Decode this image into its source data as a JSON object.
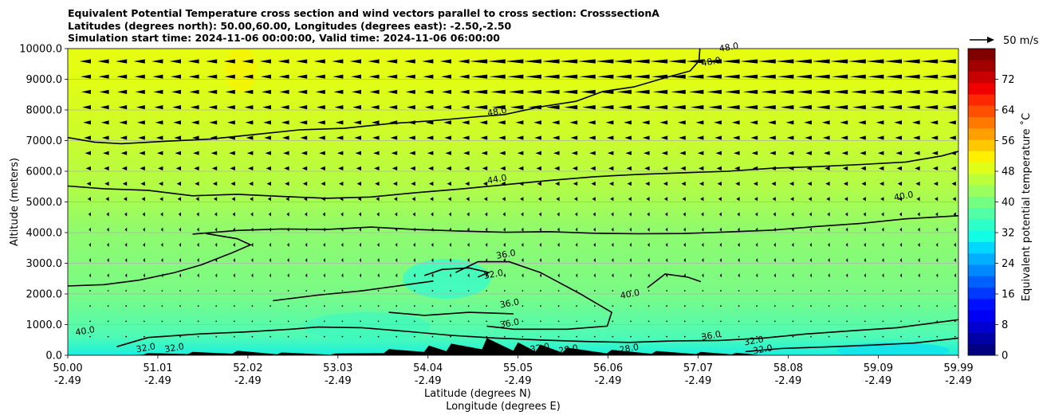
{
  "chart_data": {
    "type": "contour",
    "title_lines": [
      "Equivalent Potential Temperature cross section and wind vectors parallel to cross section: CrosssectionA",
      "Latitudes (degrees north): 50.00,60.00, Longitudes (degrees east): -2.50,-2.50",
      "Simulation start time: 2024-11-06 00:00:00, Valid time: 2024-11-06 06:00:00"
    ],
    "xlabel_lines": [
      "Latitude (degrees N)",
      "Longitude (degrees E)"
    ],
    "ylabel": "Altitude (meters)",
    "xlim": [
      50.0,
      59.99
    ],
    "ylim": [
      0,
      10000
    ],
    "x_ticks": [
      {
        "value": 50.0,
        "lat": "50.00",
        "lon": "-2.49"
      },
      {
        "value": 51.01,
        "lat": "51.01",
        "lon": "-2.49"
      },
      {
        "value": 52.02,
        "lat": "52.02",
        "lon": "-2.49"
      },
      {
        "value": 53.03,
        "lat": "53.03",
        "lon": "-2.49"
      },
      {
        "value": 54.04,
        "lat": "54.04",
        "lon": "-2.49"
      },
      {
        "value": 55.05,
        "lat": "55.05",
        "lon": "-2.49"
      },
      {
        "value": 56.06,
        "lat": "56.06",
        "lon": "-2.49"
      },
      {
        "value": 57.07,
        "lat": "57.07",
        "lon": "-2.49"
      },
      {
        "value": 58.08,
        "lat": "58.08",
        "lon": "-2.49"
      },
      {
        "value": 59.09,
        "lat": "59.09",
        "lon": "-2.49"
      },
      {
        "value": 59.99,
        "lat": "59.99",
        "lon": "-2.49"
      }
    ],
    "y_ticks": [
      {
        "value": 0,
        "label": "0.0"
      },
      {
        "value": 1000,
        "label": "1000.0"
      },
      {
        "value": 2000,
        "label": "2000.0"
      },
      {
        "value": 3000,
        "label": "3000.0"
      },
      {
        "value": 4000,
        "label": "4000.0"
      },
      {
        "value": 5000,
        "label": "5000.0"
      },
      {
        "value": 6000,
        "label": "6000.0"
      },
      {
        "value": 7000,
        "label": "7000.0"
      },
      {
        "value": 8000,
        "label": "8000.0"
      },
      {
        "value": 9000,
        "label": "9000.0"
      },
      {
        "value": 10000,
        "label": "10000.0"
      }
    ],
    "grid": "horizontal",
    "colorbar": {
      "label": "Equivalent potential temperature ˚C",
      "range": [
        0,
        80
      ],
      "ticks": [
        {
          "value": 0,
          "label": "0"
        },
        {
          "value": 8,
          "label": "8"
        },
        {
          "value": 16,
          "label": "16"
        },
        {
          "value": 24,
          "label": "24"
        },
        {
          "value": 32,
          "label": "32"
        },
        {
          "value": 40,
          "label": "40"
        },
        {
          "value": 48,
          "label": "48"
        },
        {
          "value": 56,
          "label": "56"
        },
        {
          "value": 64,
          "label": "64"
        },
        {
          "value": 72,
          "label": "72"
        }
      ],
      "colormap": "jet"
    },
    "quiver_key": {
      "label": "50 m/s"
    },
    "contour_labels": [
      {
        "text": "48.0",
        "x": 57.42,
        "y": 9950
      },
      {
        "text": "48.0",
        "x": 57.22,
        "y": 9480
      },
      {
        "text": "48.0",
        "x": 54.82,
        "y": 7850
      },
      {
        "text": "44.0",
        "x": 54.82,
        "y": 5650
      },
      {
        "text": "40.0",
        "x": 59.38,
        "y": 5100
      },
      {
        "text": "40.0",
        "x": 56.31,
        "y": 1900
      },
      {
        "text": "36.0",
        "x": 54.92,
        "y": 3200
      },
      {
        "text": "32.0",
        "x": 54.78,
        "y": 2550
      },
      {
        "text": "36.0",
        "x": 54.96,
        "y": 1600
      },
      {
        "text": "36.0",
        "x": 54.96,
        "y": 950
      },
      {
        "text": "36.0",
        "x": 57.22,
        "y": 550
      },
      {
        "text": "32.0",
        "x": 57.7,
        "y": 380
      },
      {
        "text": "40.0",
        "x": 50.2,
        "y": 700
      },
      {
        "text": "32.0",
        "x": 50.88,
        "y": 150
      },
      {
        "text": "32.0",
        "x": 51.2,
        "y": 150
      },
      {
        "text": "32.0",
        "x": 55.3,
        "y": 150
      },
      {
        "text": "28.0",
        "x": 55.62,
        "y": 100
      },
      {
        "text": "28.0",
        "x": 56.3,
        "y": 130
      },
      {
        "text": "32.0",
        "x": 57.8,
        "y": 100
      }
    ],
    "contours": [
      {
        "level": 48,
        "points": [
          [
            57.09,
            10000
          ],
          [
            57.08,
            9600
          ],
          [
            56.98,
            9270
          ],
          [
            56.7,
            9050
          ],
          [
            56.35,
            8750
          ],
          [
            56.0,
            8600
          ],
          [
            55.7,
            8280
          ],
          [
            55.3,
            8100
          ],
          [
            54.9,
            7850
          ],
          [
            54.6,
            7780
          ],
          [
            54.1,
            7650
          ],
          [
            53.6,
            7550
          ],
          [
            53.1,
            7400
          ],
          [
            52.6,
            7350
          ],
          [
            52.1,
            7200
          ],
          [
            51.6,
            7050
          ],
          [
            51.1,
            6980
          ],
          [
            50.6,
            6900
          ],
          [
            50.3,
            6950
          ],
          [
            50.0,
            7100
          ]
        ]
      },
      {
        "level": 44,
        "points": [
          [
            50.0,
            5520
          ],
          [
            50.4,
            5430
          ],
          [
            50.9,
            5380
          ],
          [
            51.4,
            5200
          ],
          [
            51.9,
            5250
          ],
          [
            52.4,
            5180
          ],
          [
            52.9,
            5120
          ],
          [
            53.4,
            5160
          ],
          [
            53.9,
            5300
          ],
          [
            54.4,
            5420
          ],
          [
            54.9,
            5560
          ],
          [
            55.4,
            5700
          ],
          [
            55.9,
            5820
          ],
          [
            56.4,
            5900
          ],
          [
            56.9,
            5950
          ],
          [
            57.4,
            6000
          ],
          [
            57.9,
            6100
          ],
          [
            58.4,
            6150
          ],
          [
            58.9,
            6220
          ],
          [
            59.4,
            6300
          ],
          [
            59.8,
            6500
          ],
          [
            59.99,
            6650
          ]
        ]
      },
      {
        "level": 40,
        "points": [
          [
            51.4,
            3950
          ],
          [
            51.9,
            4070
          ],
          [
            52.4,
            4120
          ],
          [
            52.9,
            4100
          ],
          [
            53.4,
            4180
          ],
          [
            53.9,
            4100
          ],
          [
            54.4,
            4050
          ],
          [
            54.9,
            4010
          ],
          [
            55.4,
            4030
          ],
          [
            55.9,
            3980
          ],
          [
            56.4,
            3960
          ],
          [
            56.9,
            3970
          ],
          [
            57.4,
            4020
          ],
          [
            57.9,
            4080
          ],
          [
            58.4,
            4200
          ],
          [
            58.9,
            4300
          ],
          [
            59.4,
            4450
          ],
          [
            59.99,
            4550
          ]
        ]
      },
      {
        "level": 40,
        "points": [
          [
            50.0,
            2260
          ],
          [
            50.4,
            2300
          ],
          [
            50.8,
            2450
          ],
          [
            51.2,
            2700
          ],
          [
            51.5,
            2950
          ],
          [
            51.85,
            3350
          ],
          [
            52.05,
            3600
          ],
          [
            51.9,
            3800
          ],
          [
            51.55,
            3970
          ]
        ]
      },
      {
        "level": 40,
        "points": [
          [
            52.3,
            1780
          ],
          [
            52.8,
            1960
          ],
          [
            53.3,
            2100
          ],
          [
            53.8,
            2300
          ],
          [
            54.1,
            2420
          ]
        ]
      },
      {
        "level": 40,
        "points": [
          [
            56.5,
            2200
          ],
          [
            56.7,
            2650
          ],
          [
            56.95,
            2550
          ],
          [
            57.1,
            2400
          ]
        ]
      },
      {
        "level": 36,
        "points": [
          [
            54.35,
            2700
          ],
          [
            54.6,
            3050
          ],
          [
            54.95,
            3050
          ],
          [
            55.3,
            2700
          ],
          [
            55.75,
            2000
          ],
          [
            56.1,
            1400
          ],
          [
            56.05,
            950
          ],
          [
            55.6,
            850
          ],
          [
            55.0,
            850
          ],
          [
            54.7,
            950
          ]
        ]
      },
      {
        "level": 36,
        "points": [
          [
            53.6,
            1400
          ],
          [
            54.0,
            1300
          ],
          [
            54.5,
            1400
          ],
          [
            55.0,
            1350
          ]
        ]
      },
      {
        "level": 32,
        "points": [
          [
            54.0,
            2600
          ],
          [
            54.2,
            2800
          ],
          [
            54.5,
            2850
          ],
          [
            54.72,
            2700
          ],
          [
            54.6,
            2550
          ]
        ]
      },
      {
        "level": 36,
        "points": [
          [
            50.55,
            280
          ],
          [
            50.9,
            580
          ],
          [
            51.5,
            700
          ],
          [
            52.0,
            760
          ],
          [
            52.5,
            850
          ],
          [
            52.8,
            920
          ],
          [
            53.3,
            900
          ],
          [
            53.8,
            780
          ],
          [
            54.3,
            650
          ],
          [
            54.8,
            560
          ],
          [
            55.3,
            500
          ],
          [
            55.8,
            450
          ],
          [
            56.3,
            420
          ],
          [
            56.8,
            470
          ],
          [
            57.3,
            480
          ],
          [
            57.8,
            560
          ],
          [
            58.3,
            700
          ],
          [
            58.8,
            800
          ],
          [
            59.3,
            900
          ],
          [
            59.99,
            1160
          ]
        ]
      },
      {
        "level": 32,
        "points": [
          [
            57.6,
            120
          ],
          [
            58.0,
            220
          ],
          [
            58.5,
            270
          ],
          [
            59.0,
            330
          ],
          [
            59.5,
            400
          ],
          [
            59.99,
            560
          ]
        ]
      }
    ],
    "terrain_peaks_m": [
      {
        "x": 50.9,
        "y": 70
      },
      {
        "x": 51.4,
        "y": 110
      },
      {
        "x": 51.9,
        "y": 150
      },
      {
        "x": 52.4,
        "y": 90
      },
      {
        "x": 53.0,
        "y": 60
      },
      {
        "x": 53.6,
        "y": 200
      },
      {
        "x": 54.05,
        "y": 320
      },
      {
        "x": 54.3,
        "y": 380
      },
      {
        "x": 54.7,
        "y": 560
      },
      {
        "x": 55.05,
        "y": 420
      },
      {
        "x": 55.3,
        "y": 350
      },
      {
        "x": 55.6,
        "y": 250
      },
      {
        "x": 56.1,
        "y": 180
      },
      {
        "x": 56.6,
        "y": 140
      },
      {
        "x": 57.1,
        "y": 110
      },
      {
        "x": 57.5,
        "y": 80
      }
    ]
  },
  "colors": {
    "contour": "#000000",
    "grid": "#b0b0b0",
    "terrain": "#000000"
  }
}
